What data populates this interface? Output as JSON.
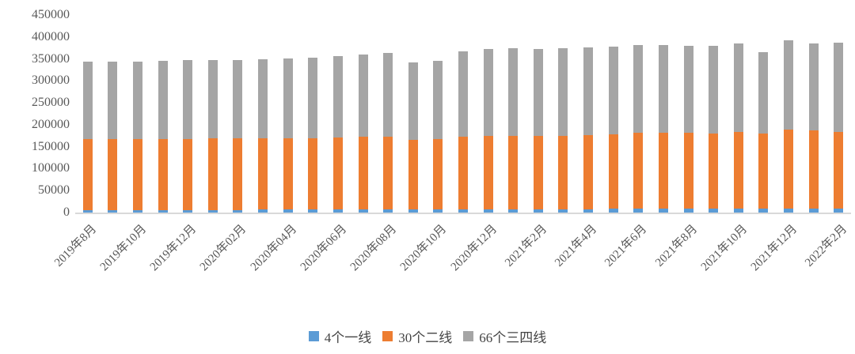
{
  "chart_data": {
    "type": "bar",
    "stacked": true,
    "title": "",
    "xlabel": "",
    "ylabel": "",
    "ylim": [
      0,
      450000
    ],
    "y_ticks": [
      450000,
      400000,
      350000,
      300000,
      250000,
      200000,
      150000,
      100000,
      50000,
      0
    ],
    "grid": false,
    "legend_position": "bottom",
    "axis_text_color": "#595959",
    "legend_text_color": "#444444",
    "baseline_color": "#d9d9d9",
    "background": "#ffffff",
    "x": [
      "2019年8月",
      "2019年9月",
      "2019年10月",
      "2019年11月",
      "2019年12月",
      "2020年01月",
      "2020年02月",
      "2020年03月",
      "2020年04月",
      "2020年05月",
      "2020年06月",
      "2020年07月",
      "2020年08月",
      "2020年09月",
      "2020年10月",
      "2020年11月",
      "2020年12月",
      "2021年1月",
      "2021年2月",
      "2021年3月",
      "2021年4月",
      "2021年5月",
      "2021年6月",
      "2021年7月",
      "2021年8月",
      "2021年9月",
      "2021年10月",
      "2021年11月",
      "2021年12月",
      "2022年1月",
      "2022年2月"
    ],
    "x_tick_labels": [
      "2019年8月",
      "2019年10月",
      "2019年12月",
      "2020年02月",
      "2020年04月",
      "2020年06月",
      "2020年08月",
      "2020年10月",
      "2020年12月",
      "2021年2月",
      "2021年4月",
      "2021年6月",
      "2021年8月",
      "2021年10月",
      "2021年12月",
      "2022年2月"
    ],
    "x_tick_every": 2,
    "series": [
      {
        "name": "4个一线",
        "color": "#5B9BD5",
        "values": [
          6000,
          6000,
          6000,
          6000,
          6000,
          6000,
          6000,
          6500,
          6500,
          7000,
          7000,
          7000,
          7000,
          7000,
          7000,
          7500,
          7500,
          8000,
          8000,
          8000,
          8000,
          8500,
          8500,
          8500,
          8500,
          8500,
          9000,
          9000,
          9000,
          9000,
          9000
        ]
      },
      {
        "name": "30个二线",
        "color": "#ED7D31",
        "values": [
          161000,
          161000,
          161000,
          161000,
          161500,
          163000,
          162500,
          162000,
          163500,
          162000,
          163500,
          165000,
          165000,
          159000,
          161000,
          164500,
          167500,
          167500,
          166000,
          166500,
          168000,
          170000,
          172500,
          174000,
          172500,
          171500,
          175500,
          170500,
          179500,
          177500,
          175500
        ]
      },
      {
        "name": "66个三四线",
        "color": "#A5A5A5",
        "values": [
          176000,
          176000,
          177000,
          178000,
          179500,
          178000,
          179000,
          181500,
          181500,
          183000,
          185500,
          188500,
          192000,
          176500,
          177500,
          196000,
          198000,
          199000,
          199000,
          200000,
          201000,
          200000,
          200500,
          200000,
          199000,
          199000,
          201500,
          186500,
          204000,
          199000,
          202000
        ]
      }
    ]
  }
}
